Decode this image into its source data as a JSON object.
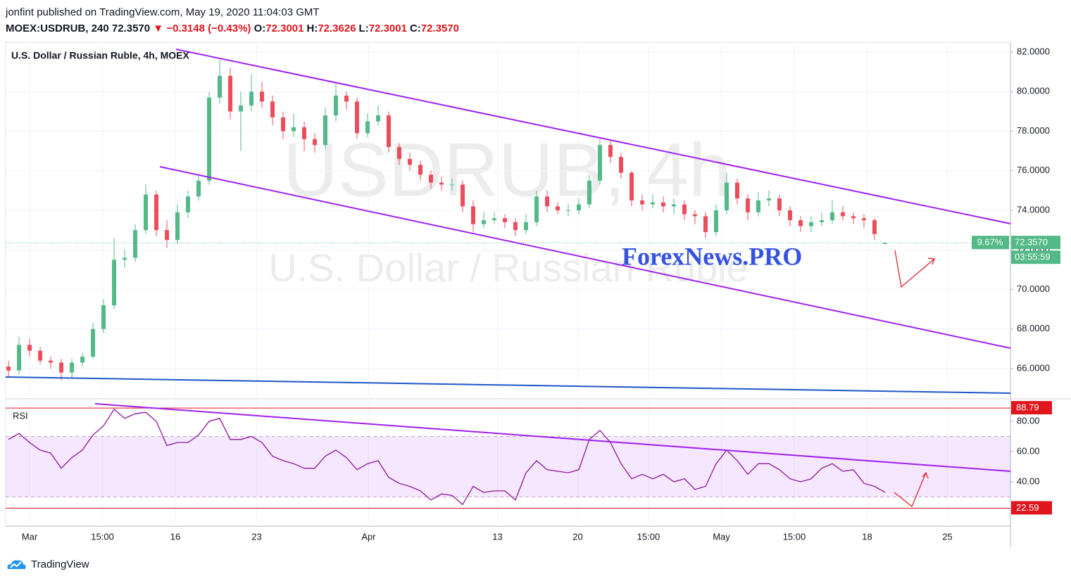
{
  "header": {
    "publisher": "jonfint published on TradingView.com, May 19, 2020 11:04:03 GMT",
    "symbol": "MOEX:USDRUB, 240",
    "last": "72.3570",
    "arrow": "▼",
    "change": "−0.3148 (−0.43%)",
    "ohlc": [
      {
        "label": "O:",
        "value": "72.3001"
      },
      {
        "label": "H:",
        "value": "72.3626"
      },
      {
        "label": "L:",
        "value": "72.3001"
      },
      {
        "label": "C:",
        "value": "72.3570"
      }
    ]
  },
  "brand": "ForexNews.PRO",
  "footer": "TradingView",
  "chart_data": [
    {
      "type": "candlestick",
      "title": "U.S. Dollar / Russian Ruble, 4h, MOEX",
      "watermark": [
        "USDRUB, 4h",
        "U.S. Dollar / Russian Ruble"
      ],
      "up_color": "#53b987",
      "down_color": "#eb4d5c",
      "grid": true,
      "open": [
        66.1,
        65.9,
        67.2,
        66.9,
        66.4,
        66.3,
        65.8,
        66.3,
        66.6,
        68.0,
        69.2,
        71.5,
        71.6,
        73.0,
        74.8,
        73.0,
        72.5,
        73.9,
        74.7,
        75.5,
        79.7,
        80.8,
        79.0,
        79.3,
        80.0,
        79.5,
        78.7,
        78.0,
        78.2,
        77.6,
        77.3,
        78.8,
        79.8,
        79.5,
        77.9,
        78.5,
        78.8,
        77.2,
        76.6,
        76.3,
        75.8,
        75.4,
        75.3,
        75.3,
        74.2,
        73.3,
        73.5,
        73.6,
        73.4,
        73.0,
        73.4,
        74.7,
        74.2,
        74.0,
        74.0,
        74.3,
        75.5,
        77.3,
        76.7,
        75.9,
        74.5,
        74.3,
        74.4,
        74.2,
        74.3,
        73.8,
        73.7,
        72.9,
        74.0,
        75.4,
        74.6,
        73.9,
        74.5,
        74.6,
        74.0,
        73.5,
        73.2,
        73.4,
        73.5,
        73.9,
        73.7,
        73.6,
        73.5,
        72.3001
      ],
      "high": [
        66.4,
        67.6,
        67.5,
        67.1,
        66.6,
        66.5,
        66.5,
        66.8,
        68.3,
        69.5,
        72.6,
        72.0,
        73.3,
        75.3,
        75.0,
        73.5,
        74.3,
        75.0,
        75.8,
        80.0,
        81.6,
        81.2,
        80.0,
        80.9,
        80.5,
        79.8,
        79.0,
        78.9,
        78.5,
        77.9,
        79.2,
        80.4,
        80.0,
        79.7,
        78.9,
        79.3,
        79.0,
        77.4,
        76.9,
        76.5,
        76.0,
        75.7,
        75.6,
        75.5,
        74.5,
        73.9,
        73.9,
        73.8,
        73.6,
        73.8,
        75.0,
        75.0,
        74.4,
        74.3,
        74.6,
        75.8,
        77.6,
        77.5,
        76.9,
        76.0,
        74.8,
        74.8,
        74.7,
        74.6,
        74.5,
        74.0,
        73.9,
        74.3,
        75.9,
        75.6,
        74.8,
        74.9,
        75.0,
        74.8,
        74.2,
        73.7,
        73.7,
        73.9,
        74.5,
        74.2,
        73.9,
        73.8,
        73.6,
        72.3626
      ],
      "low": [
        65.6,
        65.7,
        66.6,
        66.2,
        66.0,
        65.4,
        65.5,
        66.1,
        66.5,
        67.8,
        69.0,
        71.1,
        71.4,
        72.8,
        72.7,
        72.1,
        72.3,
        73.6,
        74.5,
        75.3,
        79.4,
        78.6,
        77.0,
        79.0,
        79.2,
        78.3,
        77.6,
        77.7,
        77.0,
        76.9,
        77.1,
        78.5,
        79.1,
        77.6,
        77.7,
        78.3,
        76.9,
        76.3,
        76.0,
        75.5,
        75.1,
        75.0,
        75.0,
        73.9,
        72.9,
        73.1,
        73.3,
        73.1,
        72.7,
        72.8,
        73.2,
        73.9,
        73.8,
        73.7,
        73.8,
        74.1,
        75.3,
        76.4,
        75.6,
        74.2,
        74.0,
        74.1,
        73.9,
        73.8,
        73.5,
        73.3,
        72.6,
        72.7,
        73.8,
        74.3,
        73.5,
        73.7,
        74.2,
        73.7,
        73.2,
        72.9,
        72.9,
        73.2,
        73.3,
        73.5,
        73.3,
        73.1,
        72.5,
        72.3001
      ],
      "close": [
        65.9,
        67.2,
        66.9,
        66.4,
        66.3,
        65.8,
        66.3,
        66.6,
        68.0,
        69.2,
        71.5,
        71.6,
        73.0,
        74.8,
        73.0,
        72.5,
        73.9,
        74.7,
        75.5,
        79.7,
        80.8,
        79.0,
        79.3,
        80.0,
        79.5,
        78.7,
        78.0,
        78.2,
        77.6,
        77.3,
        78.8,
        79.8,
        79.5,
        77.9,
        78.5,
        78.8,
        77.2,
        76.6,
        76.3,
        75.8,
        75.4,
        75.3,
        75.3,
        74.2,
        73.3,
        73.5,
        73.6,
        73.4,
        73.0,
        73.4,
        74.7,
        74.2,
        74.0,
        74.0,
        74.3,
        75.5,
        77.3,
        76.7,
        75.9,
        74.5,
        74.3,
        74.4,
        74.2,
        74.3,
        73.8,
        73.7,
        72.9,
        74.0,
        75.4,
        74.6,
        73.9,
        74.5,
        74.6,
        74.0,
        73.5,
        73.2,
        73.4,
        73.5,
        73.9,
        73.7,
        73.6,
        73.5,
        72.8,
        72.357
      ],
      "xlim": [
        -0.27,
        94.87
      ],
      "xticks": [
        {
          "value": 2.0,
          "label": "Mar"
        },
        {
          "value": 8.9,
          "label": "15:00"
        },
        {
          "value": 15.8,
          "label": "16"
        },
        {
          "value": 23.5,
          "label": "23"
        },
        {
          "value": 34.1,
          "label": "Apr"
        },
        {
          "value": 46.3,
          "label": "13"
        },
        {
          "value": 53.9,
          "label": "20"
        },
        {
          "value": 60.6,
          "label": "15:00"
        },
        {
          "value": 67.5,
          "label": "May"
        },
        {
          "value": 74.4,
          "label": "15:00"
        },
        {
          "value": 81.3,
          "label": "18"
        },
        {
          "value": 88.9,
          "label": "25"
        }
      ],
      "ylim": [
        64.54,
        82.5
      ],
      "yticks": [
        {
          "value": 66,
          "label": "66.0000"
        },
        {
          "value": 68,
          "label": "68.0000"
        },
        {
          "value": 70,
          "label": "70.0000"
        },
        {
          "value": 72,
          "label": "72.0000"
        },
        {
          "value": 74,
          "label": "74.0000"
        },
        {
          "value": 76,
          "label": "76.0000"
        },
        {
          "value": 78,
          "label": "78.0000"
        },
        {
          "value": 80,
          "label": "80.0000"
        },
        {
          "value": 82,
          "label": "82.0000"
        }
      ],
      "last_price": {
        "value": 72.357,
        "label": "72.3570"
      },
      "last_change": "9.67%",
      "countdown": "03:55:59",
      "last_color": "#53b987"
    },
    {
      "type": "line",
      "title": "RSI",
      "color": "#8e1599",
      "values": [
        68,
        72,
        66,
        61,
        59,
        49,
        56,
        61,
        71,
        77,
        88,
        82,
        85,
        86,
        80,
        64,
        66,
        66,
        71,
        80,
        82,
        68,
        68,
        70,
        66,
        57,
        54,
        52,
        49,
        49,
        57,
        61,
        56,
        48,
        52,
        54,
        43,
        39,
        37,
        34,
        28,
        32,
        31,
        25,
        37,
        33,
        34,
        34,
        28,
        46,
        54,
        48,
        47,
        46,
        48,
        68,
        74,
        66,
        52,
        42,
        45,
        42,
        45,
        40,
        42,
        35,
        37,
        52,
        61,
        54,
        45,
        52,
        52,
        48,
        42,
        40,
        42,
        49,
        52,
        47,
        48,
        39,
        37,
        33
      ],
      "ylim": [
        12.1,
        93.5
      ],
      "yticks": [
        {
          "value": 40,
          "label": "40.00"
        },
        {
          "value": 60,
          "label": "60.00"
        },
        {
          "value": 80,
          "label": "80.00"
        }
      ],
      "band": [
        30,
        70
      ],
      "band_color": "#9915ff",
      "levels": [
        {
          "value": 88.79,
          "label": "88.79"
        },
        {
          "value": 22.59,
          "label": "22.59"
        }
      ],
      "level_color": "#e0151d"
    }
  ]
}
